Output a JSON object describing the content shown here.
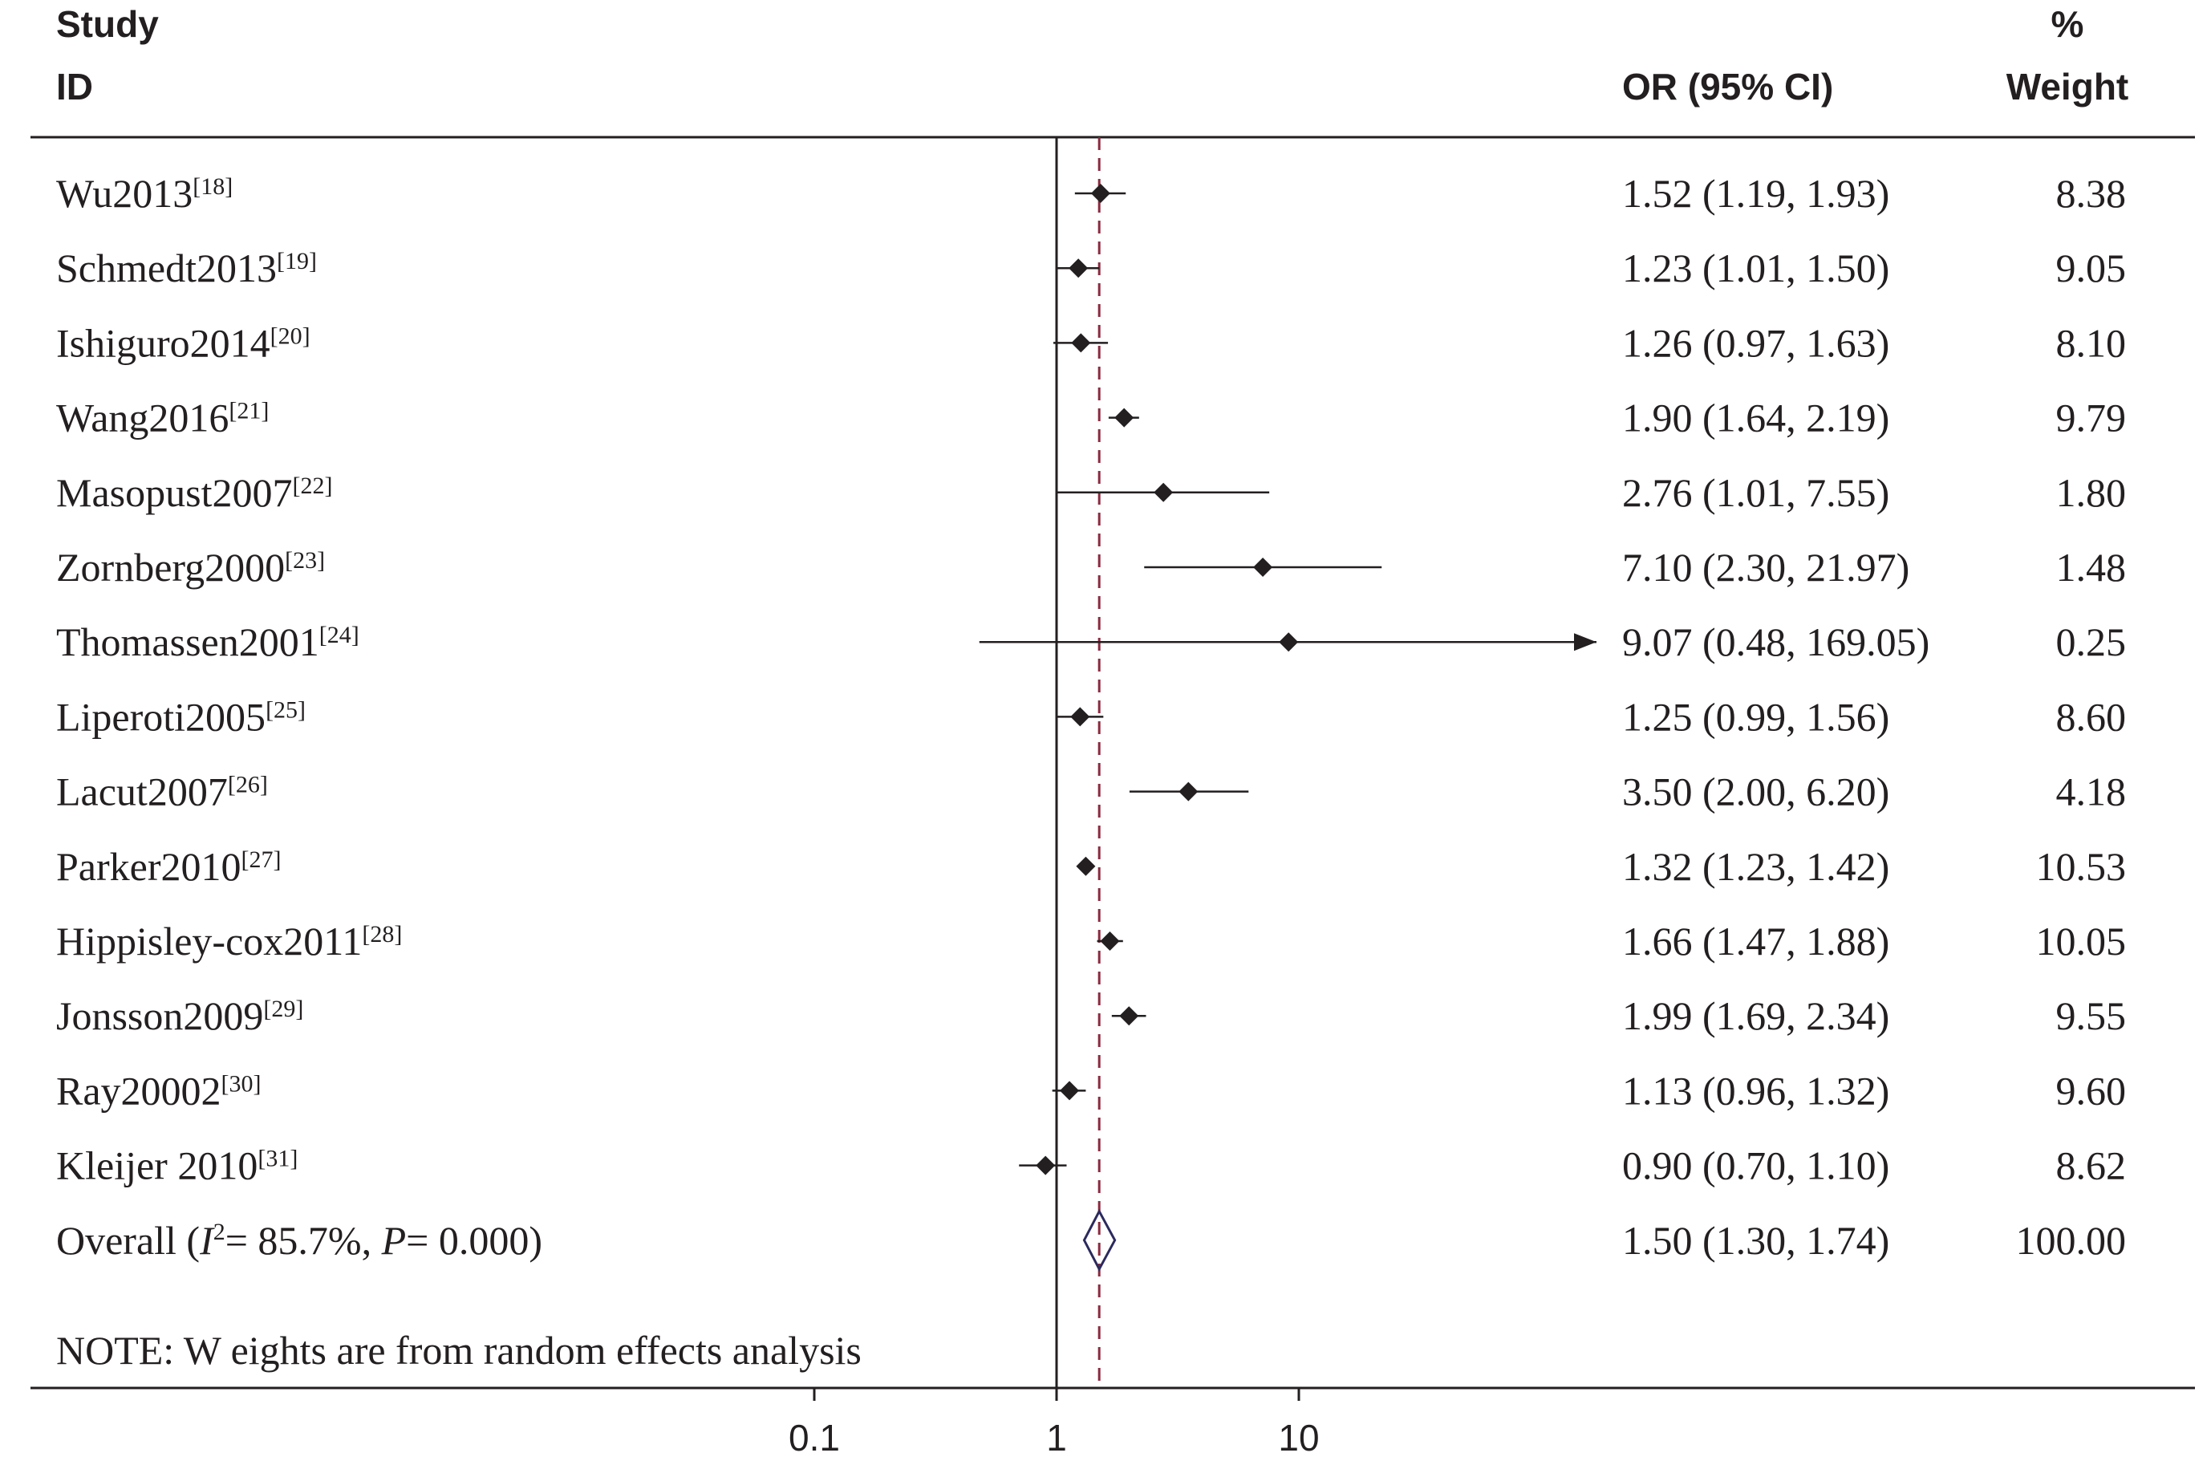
{
  "chart_data": {
    "type": "forest",
    "headers": {
      "study_line1": "Study",
      "study_line2": "ID",
      "or": "OR (95% CI)",
      "weight_line1": "%",
      "weight_line2": "Weight"
    },
    "x_scale": "log",
    "x_ticks": [
      {
        "value": 0.1,
        "label": "0.1"
      },
      {
        "value": 1,
        "label": "1"
      },
      {
        "value": 10,
        "label": "10"
      }
    ],
    "null_line": 1,
    "overall_line": 1.5,
    "studies": [
      {
        "id": "Wu2013",
        "ref": "[18]",
        "or": 1.52,
        "lo": 1.19,
        "hi": 1.93,
        "or_text": "1.52 (1.19, 1.93)",
        "weight": "8.38"
      },
      {
        "id": "Schmedt2013",
        "ref": "[19]",
        "or": 1.23,
        "lo": 1.01,
        "hi": 1.5,
        "or_text": "1.23 (1.01, 1.50)",
        "weight": "9.05"
      },
      {
        "id": "Ishiguro2014",
        "ref": "[20]",
        "or": 1.26,
        "lo": 0.97,
        "hi": 1.63,
        "or_text": "1.26 (0.97, 1.63)",
        "weight": "8.10"
      },
      {
        "id": "Wang2016",
        "ref": "[21]",
        "or": 1.9,
        "lo": 1.64,
        "hi": 2.19,
        "or_text": "1.90 (1.64, 2.19)",
        "weight": "9.79"
      },
      {
        "id": "Masopust2007",
        "ref": "[22]",
        "or": 2.76,
        "lo": 1.01,
        "hi": 7.55,
        "or_text": "2.76 (1.01, 7.55)",
        "weight": "1.80"
      },
      {
        "id": "Zornberg2000",
        "ref": "[23]",
        "or": 7.1,
        "lo": 2.3,
        "hi": 21.97,
        "or_text": "7.10 (2.30, 21.97)",
        "weight": "1.48"
      },
      {
        "id": "Thomassen2001",
        "ref": "[24]",
        "or": 9.07,
        "lo": 0.48,
        "hi": 169.05,
        "or_text": "9.07 (0.48, 169.05)",
        "weight": "0.25",
        "arrow": true
      },
      {
        "id": "Liperoti2005",
        "ref": "[25]",
        "or": 1.25,
        "lo": 0.99,
        "hi": 1.56,
        "or_text": "1.25 (0.99, 1.56)",
        "weight": "8.60"
      },
      {
        "id": "Lacut2007",
        "ref": "[26]",
        "or": 3.5,
        "lo": 2.0,
        "hi": 6.2,
        "or_text": "3.50 (2.00, 6.20)",
        "weight": "4.18"
      },
      {
        "id": "Parker2010",
        "ref": "[27]",
        "or": 1.32,
        "lo": 1.23,
        "hi": 1.42,
        "or_text": "1.32 (1.23, 1.42)",
        "weight": "10.53"
      },
      {
        "id": "Hippisley-cox2011",
        "ref": "[28]",
        "or": 1.66,
        "lo": 1.47,
        "hi": 1.88,
        "or_text": "1.66 (1.47, 1.88)",
        "weight": "10.05"
      },
      {
        "id": "Jonsson2009",
        "ref": "[29]",
        "or": 1.99,
        "lo": 1.69,
        "hi": 2.34,
        "or_text": "1.99 (1.69, 2.34)",
        "weight": "9.55"
      },
      {
        "id": "Ray20002",
        "ref": "[30]",
        "or": 1.13,
        "lo": 0.96,
        "hi": 1.32,
        "or_text": "1.13 (0.96, 1.32)",
        "weight": "9.60"
      },
      {
        "id": "Kleijer 2010",
        "ref": "[31]",
        "or": 0.9,
        "lo": 0.7,
        "hi": 1.1,
        "or_text": "0.90 (0.70, 1.10)",
        "weight": "8.62"
      }
    ],
    "overall": {
      "label_prefix": "Overall  (",
      "i2_symbol": "I",
      "i2_sup": "2",
      "i2_text": "= 85.7%, ",
      "p_symbol": "P",
      "p_text": "= 0.000)",
      "or": 1.5,
      "lo": 1.3,
      "hi": 1.74,
      "or_text": "1.50 (1.30, 1.74)",
      "weight": "100.00"
    },
    "note": "NOTE: W eights are from random effects analysis",
    "colors": {
      "ink": "#231f20",
      "overall_line": "#8b2a3f",
      "diamond": "#2b2a5e"
    }
  }
}
